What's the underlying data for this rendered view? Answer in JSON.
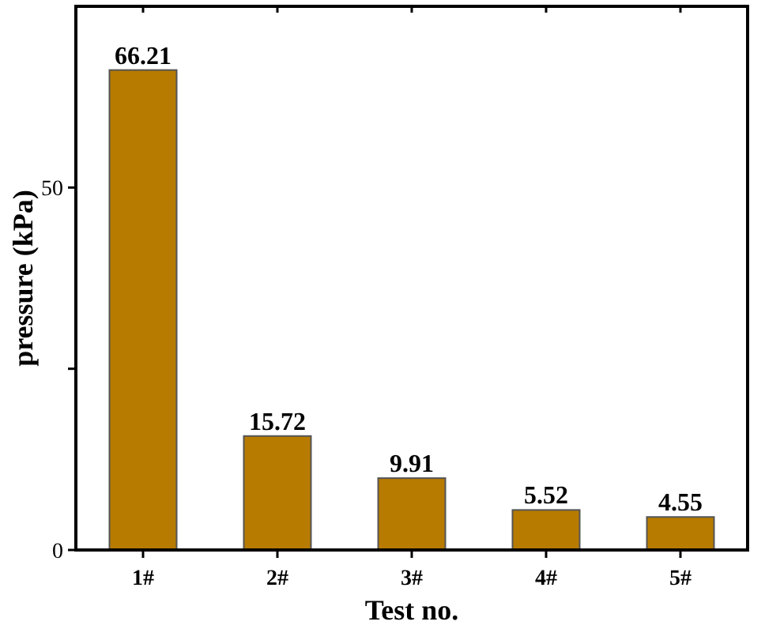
{
  "chart_data": {
    "type": "bar",
    "xlabel": "Test no.",
    "ylabel": "pressure (kPa)",
    "categories": [
      "1#",
      "2#",
      "3#",
      "4#",
      "5#"
    ],
    "values": [
      66.21,
      15.72,
      9.91,
      5.52,
      4.55
    ],
    "color": "#b77b00",
    "ylim": [
      0,
      75
    ],
    "yticks": [
      0,
      {
        "value": 25,
        "label": null
      },
      50
    ],
    "data_labels": true,
    "grid": false
  }
}
